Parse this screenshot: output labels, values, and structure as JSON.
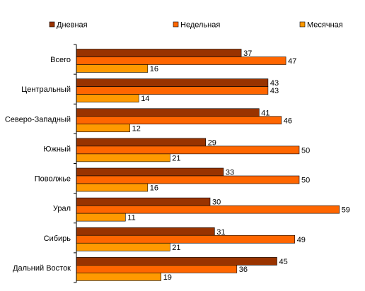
{
  "chart_data": {
    "type": "bar",
    "orientation": "horizontal",
    "categories": [
      "Всего",
      "Центральный",
      "Северо-Западный",
      "Южный",
      "Поволжье",
      "Урал",
      "Сибирь",
      "Дальний Восток"
    ],
    "series": [
      {
        "name": "Дневная",
        "color": "#993300",
        "values": [
          37,
          43,
          41,
          29,
          33,
          30,
          31,
          45
        ]
      },
      {
        "name": "Недельная",
        "color": "#FF6600",
        "values": [
          47,
          43,
          46,
          50,
          50,
          59,
          49,
          36
        ]
      },
      {
        "name": "Месячная",
        "color": "#FF9900",
        "values": [
          16,
          14,
          12,
          21,
          16,
          11,
          21,
          19
        ]
      }
    ],
    "xlim": [
      0,
      60
    ],
    "data_labels": true,
    "grid": false,
    "legend_position": "top",
    "title": "",
    "xlabel": "",
    "ylabel": ""
  }
}
